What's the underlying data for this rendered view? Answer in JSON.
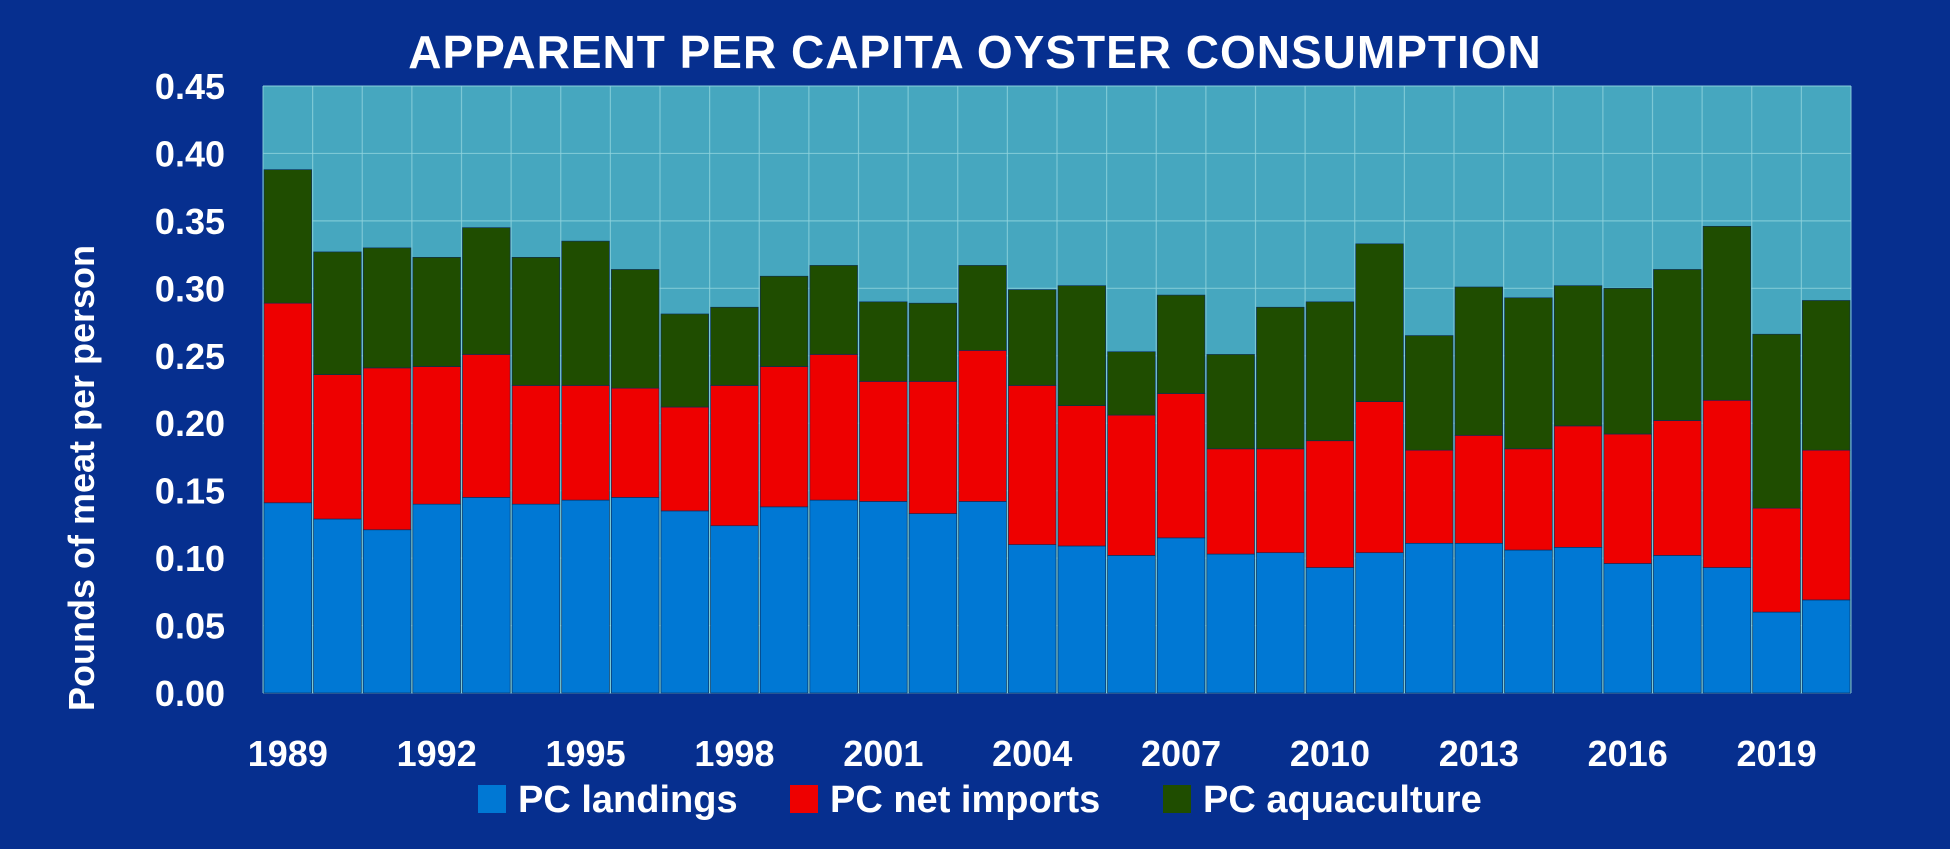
{
  "chart_data": {
    "type": "bar",
    "stacked": true,
    "title": "APPARENT PER CAPITA OYSTER CONSUMPTION",
    "ylabel": "Pounds of meat per person",
    "xlabel": "",
    "ylim": [
      0,
      0.45
    ],
    "y_ticks": [
      "0.00",
      "0.05",
      "0.10",
      "0.15",
      "0.20",
      "0.25",
      "0.30",
      "0.35",
      "0.40",
      "0.45"
    ],
    "x_tick_labels": [
      "1989",
      "1992",
      "1995",
      "1998",
      "2001",
      "2004",
      "2007",
      "2010",
      "2013",
      "2016",
      "2019"
    ],
    "grid": true,
    "legend_position": "bottom",
    "categories": [
      "1989",
      "1990",
      "1991",
      "1992",
      "1993",
      "1994",
      "1995",
      "1996",
      "1997",
      "1998",
      "1999",
      "2000",
      "2001",
      "2002",
      "2003",
      "2004",
      "2005",
      "2006",
      "2007",
      "2008",
      "2009",
      "2010",
      "2011",
      "2012",
      "2013",
      "2014",
      "2015",
      "2016",
      "2017",
      "2018",
      "2019",
      "2020"
    ],
    "series": [
      {
        "name": "PC landings",
        "color": "#0078d4",
        "values": [
          0.141,
          0.129,
          0.121,
          0.14,
          0.145,
          0.14,
          0.143,
          0.145,
          0.135,
          0.124,
          0.138,
          0.143,
          0.142,
          0.133,
          0.142,
          0.11,
          0.109,
          0.102,
          0.115,
          0.103,
          0.104,
          0.093,
          0.104,
          0.111,
          0.111,
          0.106,
          0.108,
          0.096,
          0.102,
          0.093,
          0.06,
          0.069
        ]
      },
      {
        "name": "PC net imports",
        "color": "#ee0000",
        "values": [
          0.148,
          0.107,
          0.12,
          0.102,
          0.106,
          0.088,
          0.085,
          0.081,
          0.077,
          0.104,
          0.104,
          0.108,
          0.089,
          0.098,
          0.112,
          0.118,
          0.104,
          0.104,
          0.107,
          0.078,
          0.077,
          0.094,
          0.112,
          0.069,
          0.08,
          0.075,
          0.09,
          0.096,
          0.1,
          0.124,
          0.077,
          0.111
        ]
      },
      {
        "name": "PC aquaculture",
        "color": "#1f4d00",
        "values": [
          0.099,
          0.091,
          0.089,
          0.081,
          0.094,
          0.095,
          0.107,
          0.088,
          0.069,
          0.058,
          0.067,
          0.066,
          0.059,
          0.058,
          0.063,
          0.071,
          0.089,
          0.047,
          0.073,
          0.07,
          0.105,
          0.103,
          0.117,
          0.085,
          0.11,
          0.112,
          0.104,
          0.108,
          0.112,
          0.129,
          0.129,
          0.111
        ]
      }
    ],
    "colors": {
      "page_background": "#062f8f",
      "plot_background": "#46a7bf",
      "grid": "#8fd3dd",
      "text": "#ffffff"
    }
  }
}
